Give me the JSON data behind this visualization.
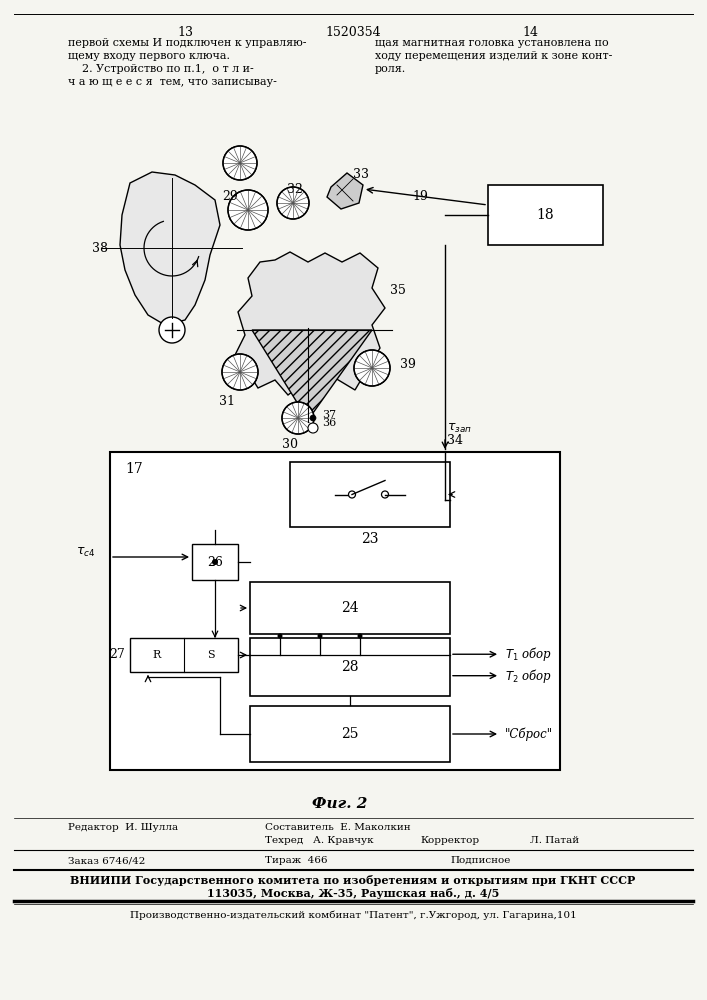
{
  "page_color": "#f5f5f0",
  "title": "1520354",
  "page_left": "13",
  "page_right": "14",
  "text_left_lines": [
    "первой схемы И подключен к управляю-",
    "щему входу первого ключа.",
    "    2. Устройство по п.1,  о т л и-",
    "ч а ю щ е е с я  тем, что записывау-"
  ],
  "text_right_lines": [
    "щая магнитная головка установлена по",
    "ходу перемещения изделий к зоне конт-",
    "роля."
  ],
  "fig_caption": "Фиг. 2",
  "footer_editor": "Редактор  И. Шулла",
  "footer_composer": "Составитель  Е. Маколкин",
  "footer_techred": "Техред   А. Кравчук",
  "footer_corrector": "Корректор",
  "footer_corrector_name": "Л. Патай",
  "footer_order": "Заказ 6746/42",
  "footer_tirazh": "Тираж  466",
  "footer_podpisnoe": "Подписное",
  "footer_bold1": "ВНИИПИ Государственного комитета по изобретениям и открытиям при ГКНТ СССР",
  "footer_bold2": "113035, Москва, Ж-35, Раушская наб., д. 4/5",
  "footer_last": "Производственно-издательский комбинат \"Патент\", г.Ужгород, ул. Гагарина,101",
  "lc": "#000000",
  "lw": 1.0
}
